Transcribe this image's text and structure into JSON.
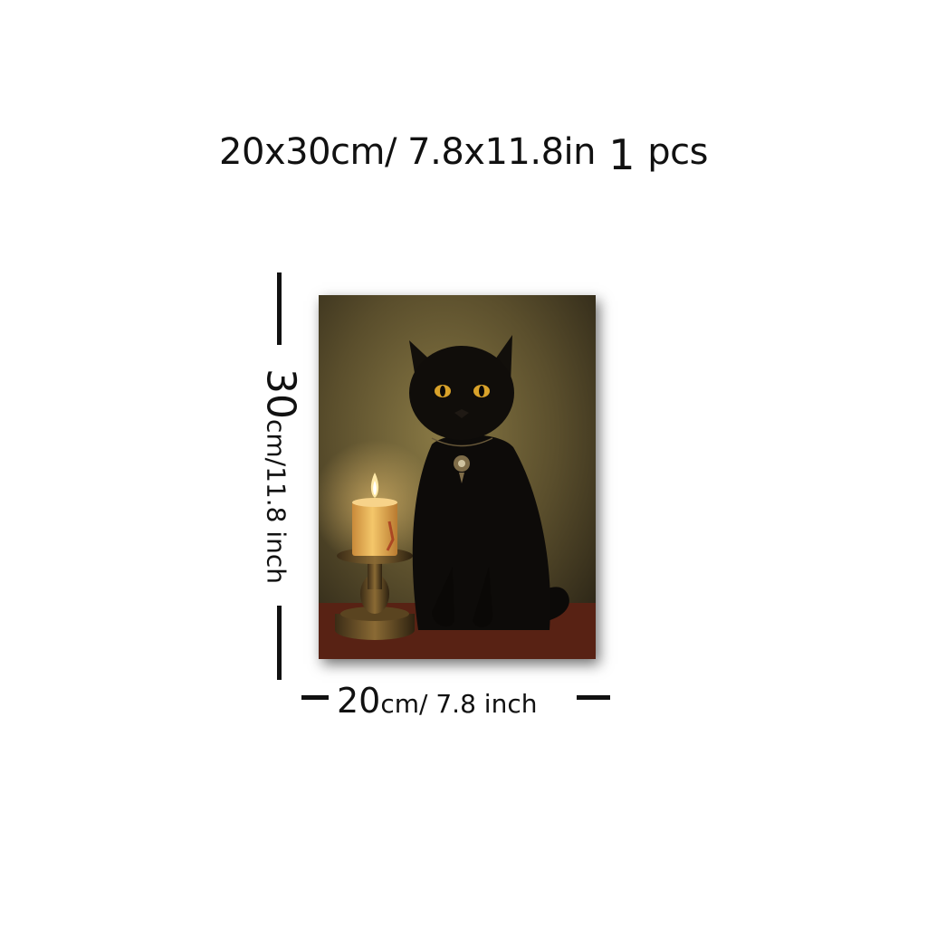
{
  "title": {
    "size_text": "20x30cm/ 7.8x11.8in",
    "quantity_number": "1",
    "quantity_unit": "pcs"
  },
  "height_dimension": {
    "number": "30",
    "unit_text": "cm/11.8 inch"
  },
  "width_dimension": {
    "number": "20",
    "unit_text": "cm/ 7.8 inch"
  }
}
